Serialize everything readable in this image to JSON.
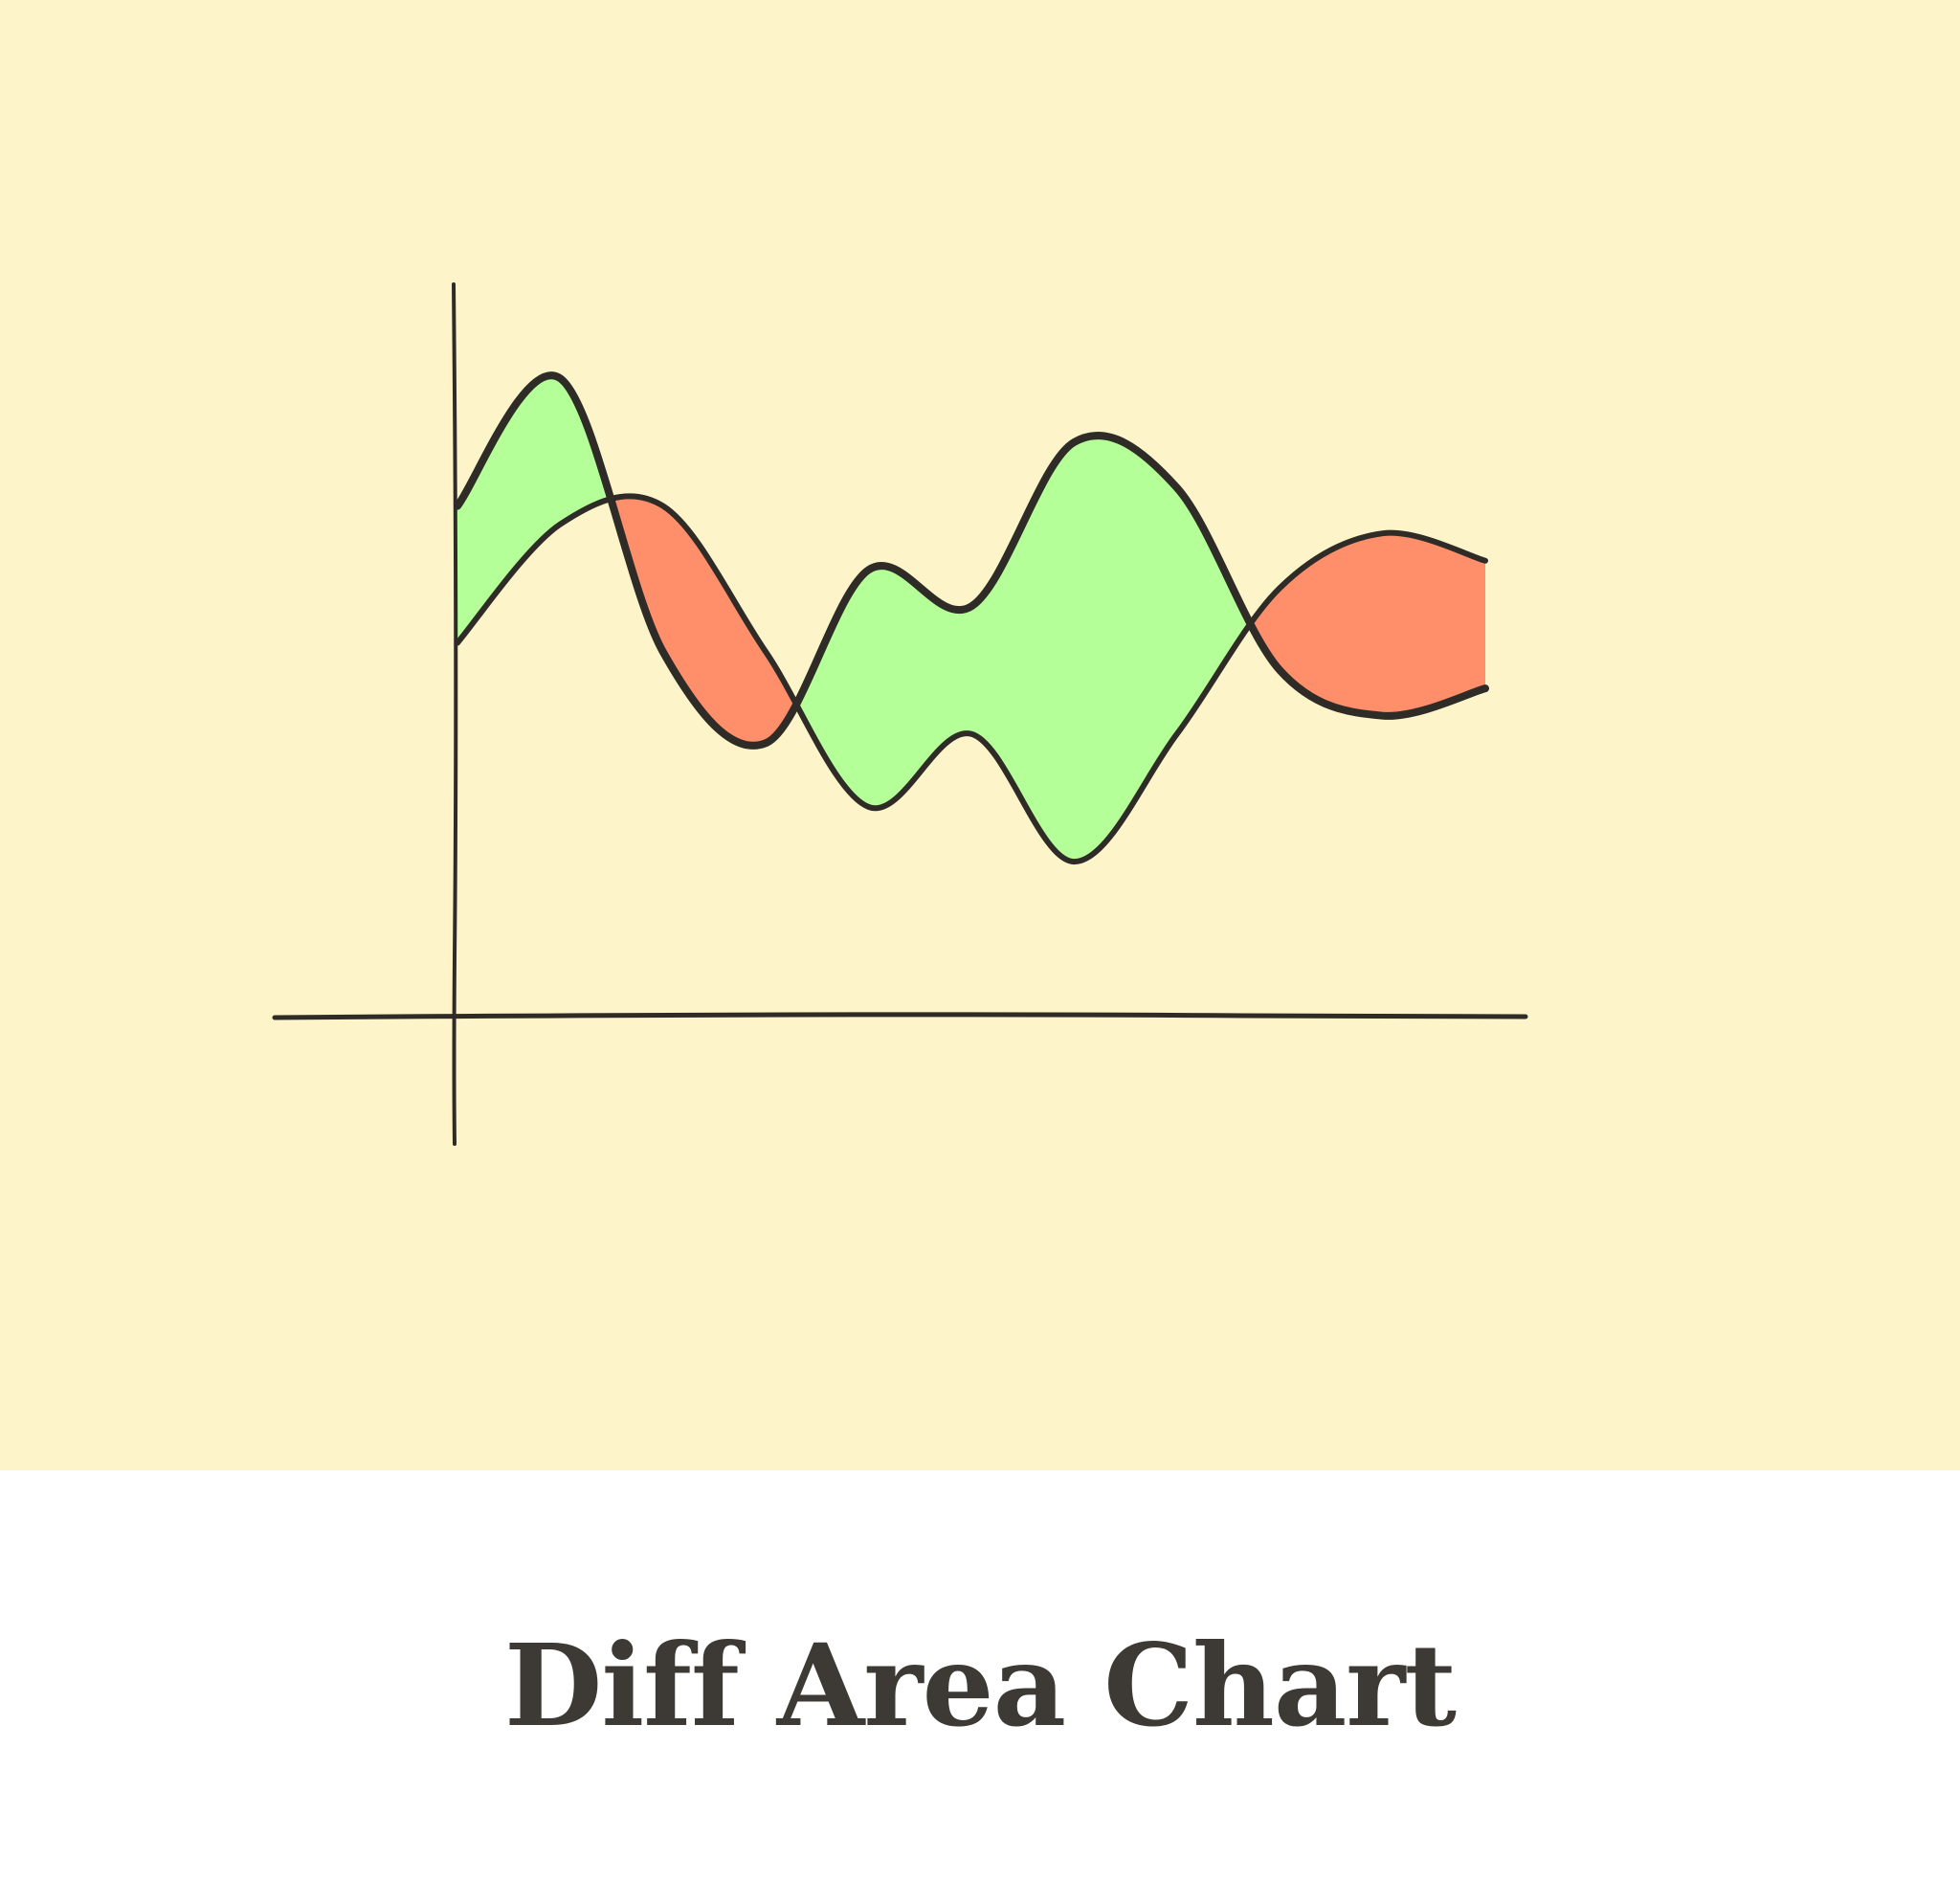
{
  "caption": {
    "title": "Diff Area Chart"
  },
  "colors": {
    "background": "#fdf4ca",
    "positive_fill": "#b4ff98",
    "negative_fill": "#ff8f6b",
    "ink": "#2f2c28",
    "caption_text": "#3d3a35"
  },
  "chart_data": {
    "type": "area",
    "subtype": "difference",
    "title": "",
    "xlabel": "",
    "ylabel": "",
    "grid": false,
    "x": [
      0,
      1,
      2,
      3,
      4,
      5,
      6,
      7,
      8,
      9,
      10
    ],
    "series": [
      {
        "values": [
          41,
          54,
          56,
          40,
          23,
          31,
          17,
          31,
          47,
          53,
          50
        ]
      },
      {
        "values": [
          56,
          70,
          40,
          30,
          49,
          45,
          63,
          58,
          38,
          33,
          36
        ]
      }
    ]
  }
}
